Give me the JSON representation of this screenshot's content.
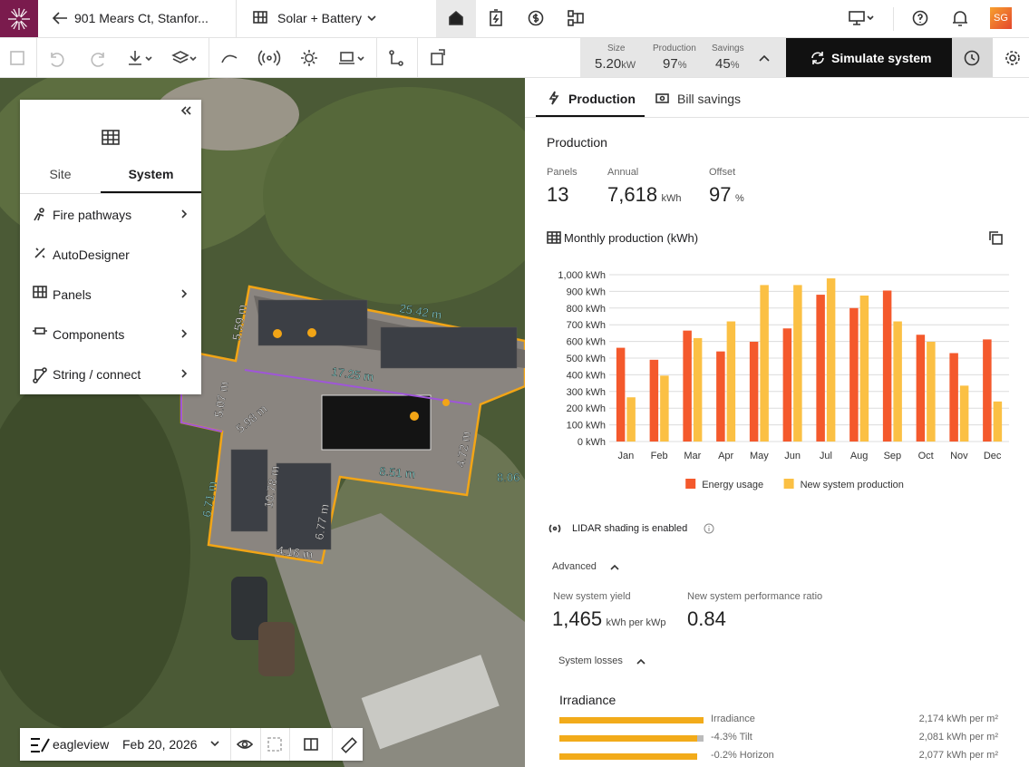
{
  "header": {
    "address": "901 Mears Ct, Stanfor...",
    "design": "Solar + Battery",
    "avatar": "SG"
  },
  "toolbar": {
    "stats": [
      {
        "label": "Size",
        "value": "5.20",
        "unit": "kW"
      },
      {
        "label": "Production",
        "value": "97",
        "unit": "%"
      },
      {
        "label": "Savings",
        "value": "45",
        "unit": "%"
      }
    ],
    "simulate": "Simulate system"
  },
  "sidebar": {
    "tabs": [
      "Site",
      "System"
    ],
    "items": [
      "Fire pathways",
      "AutoDesigner",
      "Panels",
      "Components",
      "String / connect"
    ]
  },
  "map": {
    "labels": [
      "5.59 m",
      "25.42 m",
      "17.25 m",
      "5.07 m",
      "5.98 m",
      "8.51 m",
      "4.72 m",
      "8.06",
      "6.71 m",
      "10.78 m",
      "6.77 m",
      "4.16 m"
    ],
    "footer": {
      "brand": "eagleview",
      "date": "Feb 20, 2026"
    }
  },
  "panel": {
    "tabs": [
      "Production",
      "Bill savings"
    ],
    "section_title": "Production",
    "metrics": [
      {
        "label": "Panels",
        "value": "13"
      },
      {
        "label": "Annual",
        "value": "7,618",
        "unit": "kWh"
      },
      {
        "label": "Offset",
        "value": "97",
        "unit": "%"
      }
    ],
    "lidar": "LIDAR shading is enabled",
    "advanced": "Advanced",
    "advanced_metrics": [
      {
        "label": "New system yield",
        "value": "1,465",
        "unit": "kWh per kWp"
      },
      {
        "label": "New system performance ratio",
        "value": "0.84"
      }
    ],
    "losses_title": "System losses",
    "irradiance": {
      "title": "Irradiance",
      "rows": [
        {
          "label": "Irradiance",
          "value": "2,174 kWh per m²"
        },
        {
          "label": "-4.3% Tilt",
          "value": "2,081 kWh per m²"
        },
        {
          "label": "-0.2% Horizon",
          "value": "2,077 kWh per m²"
        }
      ]
    }
  },
  "chart_data": {
    "type": "bar",
    "title": "Monthly production (kWh)",
    "categories": [
      "Jan",
      "Feb",
      "Mar",
      "Apr",
      "May",
      "Jun",
      "Jul",
      "Aug",
      "Sep",
      "Oct",
      "Nov",
      "Dec"
    ],
    "series": [
      {
        "name": "Energy usage",
        "color": "#f4592c",
        "values": [
          562,
          490,
          665,
          540,
          598,
          678,
          880,
          800,
          905,
          640,
          530,
          612
        ]
      },
      {
        "name": "New system production",
        "color": "#fbc044",
        "values": [
          265,
          395,
          620,
          720,
          938,
          938,
          978,
          875,
          720,
          598,
          335,
          240
        ]
      }
    ],
    "ylim": [
      0,
      1000
    ],
    "yticks": [
      {
        "value": 0,
        "label": "0 kWh"
      },
      {
        "value": 100,
        "label": "100 kWh"
      },
      {
        "value": 200,
        "label": "200 kWh"
      },
      {
        "value": 300,
        "label": "300 kWh"
      },
      {
        "value": 400,
        "label": "400 kWh"
      },
      {
        "value": 500,
        "label": "500 kWh"
      },
      {
        "value": 600,
        "label": "600 kWh"
      },
      {
        "value": 700,
        "label": "700 kWh"
      },
      {
        "value": 800,
        "label": "800 kWh"
      },
      {
        "value": 900,
        "label": "900 kWh"
      },
      {
        "value": 1000,
        "label": "1,000 kWh"
      }
    ],
    "grid": true,
    "legend": "bottom"
  }
}
